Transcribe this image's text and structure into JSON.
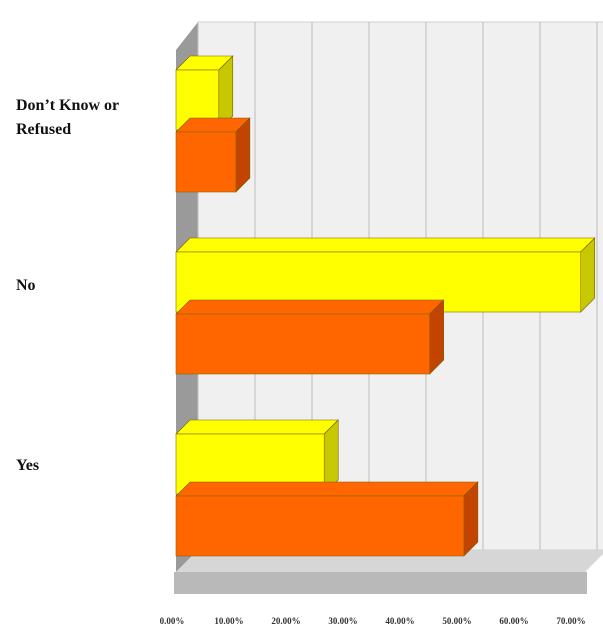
{
  "chart_data": {
    "type": "bar",
    "orientation": "horizontal",
    "three_d": true,
    "categories": [
      "Don’t Know or Refused",
      "No",
      "Yes"
    ],
    "series": [
      {
        "color": "#ffff00",
        "side_color": "#c8c800",
        "values": [
          7.5,
          71.0,
          26.0
        ]
      },
      {
        "color": "#ff6600",
        "side_color": "#c24400",
        "values": [
          10.5,
          44.5,
          50.5
        ]
      }
    ],
    "x_ticks": [
      "0.00%",
      "10.00%",
      "20.00%",
      "30.00%",
      "40.00%",
      "50.00%",
      "60.00%",
      "70.00%"
    ],
    "xlim": [
      0,
      70
    ],
    "grid": true,
    "legend": false
  }
}
